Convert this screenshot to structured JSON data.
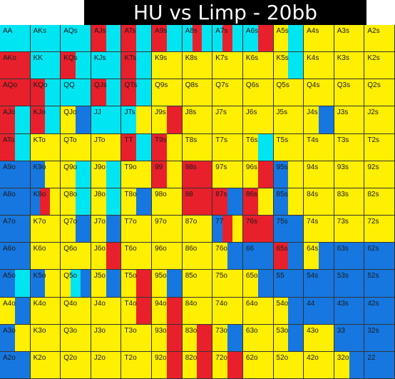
{
  "title": "HU vs Limp - 20bb",
  "colors": {
    "Y": "#ffef00",
    "C": "#00e5f2",
    "R": "#e8202c",
    "B": "#1677e0"
  },
  "rows": [
    [
      "AA",
      "AKs",
      "AQs",
      "AJs",
      "ATs",
      "A9s",
      "A8s",
      "A7s",
      "A6s",
      "A5s",
      "A4s",
      "A3s",
      "A2s"
    ],
    [
      "AKo",
      "KK",
      "KQs",
      "KJs",
      "KTs",
      "K9s",
      "K8s",
      "K7s",
      "K6s",
      "K5s",
      "K4s",
      "K3s",
      "K2s"
    ],
    [
      "AQo",
      "KQo",
      "QQ",
      "QJs",
      "QTs",
      "Q9s",
      "Q8s",
      "Q7s",
      "Q6s",
      "Q5s",
      "Q4s",
      "Q3s",
      "Q2s"
    ],
    [
      "AJo",
      "KJo",
      "QJo",
      "JJ",
      "JTs",
      "J9s",
      "J8s",
      "J7s",
      "J6s",
      "J5s",
      "J4s",
      "J3s",
      "J2s"
    ],
    [
      "ATo",
      "KTo",
      "QTo",
      "JTo",
      "TT",
      "T9s",
      "T8s",
      "T7s",
      "T6s",
      "T5s",
      "T4s",
      "T3s",
      "T2s"
    ],
    [
      "A9o",
      "K9o",
      "Q9o",
      "J9o",
      "T9o",
      "99",
      "98s",
      "97s",
      "96s",
      "95s",
      "94s",
      "93s",
      "92s"
    ],
    [
      "A8o",
      "K8o",
      "Q8o",
      "J8o",
      "T8o",
      "98o",
      "88",
      "87s",
      "86s",
      "85s",
      "84s",
      "83s",
      "82s"
    ],
    [
      "A7o",
      "K7o",
      "Q7o",
      "J7o",
      "T7o",
      "97o",
      "87o",
      "77",
      "76s",
      "75s",
      "74s",
      "73s",
      "72s"
    ],
    [
      "A6o",
      "K6o",
      "Q6o",
      "J6o",
      "T6o",
      "96o",
      "86o",
      "76o",
      "66",
      "65s",
      "64s",
      "63s",
      "62s"
    ],
    [
      "A5o",
      "K5o",
      "Q5o",
      "J5o",
      "T5o",
      "95o",
      "85o",
      "75o",
      "65o",
      "55",
      "54s",
      "53s",
      "52s"
    ],
    [
      "A4o",
      "K4o",
      "Q4o",
      "J4o",
      "T4o",
      "94o",
      "84o",
      "74o",
      "64o",
      "54o",
      "44",
      "43s",
      "42s"
    ],
    [
      "A3o",
      "K3o",
      "Q3o",
      "J3o",
      "T3o",
      "93o",
      "83o",
      "73o",
      "63o",
      "53o",
      "43o",
      "33",
      "32s"
    ],
    [
      "A2o",
      "K2o",
      "Q2o",
      "J2o",
      "T2o",
      "92o",
      "82o",
      "72o",
      "62o",
      "52o",
      "42o",
      "32o",
      "22"
    ]
  ],
  "cell_colors": [
    [
      [
        "C"
      ],
      [
        "C"
      ],
      [
        "C"
      ],
      [
        "R",
        "C"
      ],
      [
        "R",
        "C"
      ],
      [
        "R",
        "C"
      ],
      [
        "C",
        "R",
        "C"
      ],
      [
        "C",
        "R",
        "C"
      ],
      [
        "C",
        "R"
      ],
      [
        "Y",
        "C"
      ],
      [
        "Y"
      ],
      [
        "Y"
      ],
      [
        "Y"
      ]
    ],
    [
      [
        "R"
      ],
      [
        "C"
      ],
      [
        "R",
        "C"
      ],
      [
        "C"
      ],
      [
        "R",
        "C"
      ],
      [
        "Y"
      ],
      [
        "Y"
      ],
      [
        "Y"
      ],
      [
        "Y"
      ],
      [
        "Y",
        "C"
      ],
      [
        "Y"
      ],
      [
        "Y"
      ],
      [
        "Y"
      ]
    ],
    [
      [
        "R"
      ],
      [
        "R",
        "C"
      ],
      [
        "C"
      ],
      [
        "R",
        "C"
      ],
      [
        "R",
        "C"
      ],
      [
        "Y"
      ],
      [
        "Y"
      ],
      [
        "Y"
      ],
      [
        "Y"
      ],
      [
        "Y"
      ],
      [
        "Y"
      ],
      [
        "Y"
      ],
      [
        "Y"
      ]
    ],
    [
      [
        "R",
        "C"
      ],
      [
        "R",
        "C"
      ],
      [
        "Y",
        "B"
      ],
      [
        "C"
      ],
      [
        "C",
        "Y"
      ],
      [
        "Y",
        "R"
      ],
      [
        "Y"
      ],
      [
        "Y"
      ],
      [
        "Y"
      ],
      [
        "Y"
      ],
      [
        "Y",
        "B"
      ],
      [
        "Y"
      ],
      [
        "Y"
      ]
    ],
    [
      [
        "R",
        "C"
      ],
      [
        "Y"
      ],
      [
        "Y"
      ],
      [
        "Y"
      ],
      [
        "R",
        "C"
      ],
      [
        "R",
        "Y"
      ],
      [
        "Y"
      ],
      [
        "Y"
      ],
      [
        "Y",
        "C"
      ],
      [
        "Y"
      ],
      [
        "Y"
      ],
      [
        "Y"
      ],
      [
        "Y"
      ]
    ],
    [
      [
        "B"
      ],
      [
        "B",
        "Y"
      ],
      [
        "Y",
        "C"
      ],
      [
        "Y",
        "C"
      ],
      [
        "Y"
      ],
      [
        "R",
        "Y"
      ],
      [
        "R"
      ],
      [
        "Y"
      ],
      [
        "Y",
        "R"
      ],
      [
        "B",
        "Y"
      ],
      [
        "Y"
      ],
      [
        "Y"
      ],
      [
        "Y"
      ]
    ],
    [
      [
        "B"
      ],
      [
        "B",
        "R",
        "Y"
      ],
      [
        "Y",
        "C"
      ],
      [
        "Y",
        "C"
      ],
      [
        "Y",
        "B"
      ],
      [
        "Y"
      ],
      [
        "R"
      ],
      [
        "R",
        "B"
      ],
      [
        "R",
        "Y"
      ],
      [
        "B",
        "Y"
      ],
      [
        "Y"
      ],
      [
        "Y"
      ],
      [
        "Y"
      ]
    ],
    [
      [
        "B"
      ],
      [
        "Y"
      ],
      [
        "Y",
        "B"
      ],
      [
        "Y",
        "B"
      ],
      [
        "Y"
      ],
      [
        "Y"
      ],
      [
        "Y"
      ],
      [
        "B",
        "R",
        "Y"
      ],
      [
        "R"
      ],
      [
        "B"
      ],
      [
        "Y"
      ],
      [
        "Y"
      ],
      [
        "Y"
      ]
    ],
    [
      [
        "B"
      ],
      [
        "Y"
      ],
      [
        "Y"
      ],
      [
        "Y",
        "R"
      ],
      [
        "Y"
      ],
      [
        "Y"
      ],
      [
        "Y"
      ],
      [
        "Y",
        "B"
      ],
      [
        "B"
      ],
      [
        "R",
        "B"
      ],
      [
        "Y",
        "B"
      ],
      [
        "B"
      ],
      [
        "B"
      ]
    ],
    [
      [
        "B",
        "C"
      ],
      [
        "B",
        "Y"
      ],
      [
        "Y",
        "C",
        "B"
      ],
      [
        "Y",
        "B"
      ],
      [
        "Y",
        "R"
      ],
      [
        "Y",
        "B"
      ],
      [
        "Y"
      ],
      [
        "Y"
      ],
      [
        "Y",
        "B"
      ],
      [
        "B"
      ],
      [
        "B"
      ],
      [
        "B"
      ],
      [
        "B"
      ]
    ],
    [
      [
        "Y",
        "B"
      ],
      [
        "Y"
      ],
      [
        "Y"
      ],
      [
        "Y"
      ],
      [
        "Y",
        "R"
      ],
      [
        "Y",
        "R"
      ],
      [
        "Y"
      ],
      [
        "Y"
      ],
      [
        "Y"
      ],
      [
        "Y",
        "B"
      ],
      [
        "B"
      ],
      [
        "B"
      ],
      [
        "B"
      ]
    ],
    [
      [
        "B",
        "Y"
      ],
      [
        "Y"
      ],
      [
        "Y"
      ],
      [
        "Y"
      ],
      [
        "Y"
      ],
      [
        "Y",
        "R"
      ],
      [
        "Y",
        "R"
      ],
      [
        "Y",
        "B"
      ],
      [
        "Y"
      ],
      [
        "Y",
        "B"
      ],
      [
        "Y"
      ],
      [
        "B"
      ],
      [
        "B"
      ]
    ],
    [
      [
        "B"
      ],
      [
        "Y"
      ],
      [
        "Y"
      ],
      [
        "Y"
      ],
      [
        "Y"
      ],
      [
        "Y",
        "R"
      ],
      [
        "Y",
        "R"
      ],
      [
        "Y",
        "R"
      ],
      [
        "Y"
      ],
      [
        "Y"
      ],
      [
        "Y"
      ],
      [
        "Y",
        "B"
      ],
      [
        "B"
      ]
    ]
  ]
}
